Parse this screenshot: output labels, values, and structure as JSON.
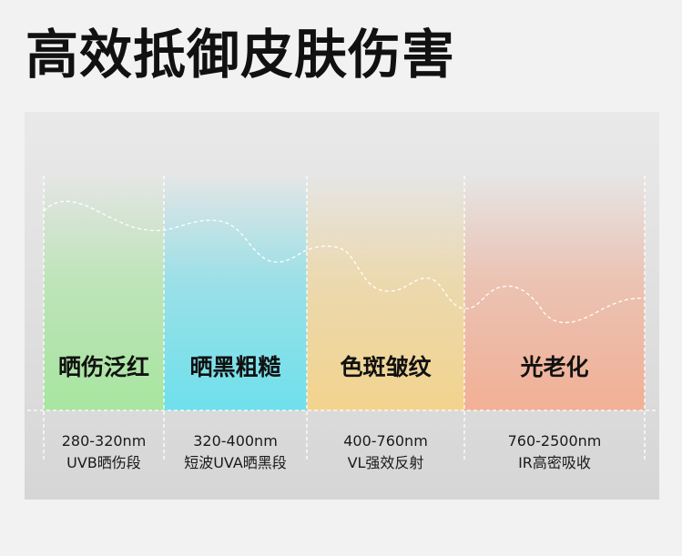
{
  "title": "高效抵御皮肤伤害",
  "bands": [
    {
      "label": "晒伤泛红",
      "range": "280-320nm",
      "desc": "UVB晒伤段",
      "color": "#a8e6a0"
    },
    {
      "label": "晒黑粗糙",
      "range": "320-400nm",
      "desc": "短波UVA晒黑段",
      "color": "#6fe0ec"
    },
    {
      "label": "色斑皱纹",
      "range": "400-760nm",
      "desc": "VL强效反射",
      "color": "#f3d48e"
    },
    {
      "label": "光老化",
      "range": "760-2500nm",
      "desc": "IR高密吸收",
      "color": "#f2b096"
    }
  ]
}
